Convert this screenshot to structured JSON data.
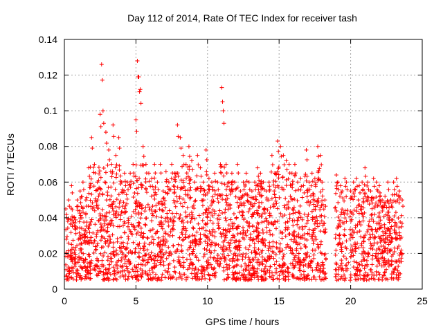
{
  "chart_data": {
    "type": "scatter",
    "title": "Day 112 of 2014, Rate Of TEC Index for receiver tash",
    "xlabel": "GPS time / hours",
    "ylabel": "ROTI / TECUs",
    "xlim": [
      0,
      25
    ],
    "ylim": [
      0,
      0.14
    ],
    "xticks": [
      0,
      5,
      10,
      15,
      20,
      25
    ],
    "xtick_labels": [
      "0",
      "5",
      "10",
      "15",
      "20",
      "25"
    ],
    "yticks": [
      0,
      0.02,
      0.04,
      0.06,
      0.08,
      0.1,
      0.12,
      0.14
    ],
    "ytick_labels": [
      "0",
      "0.02",
      "0.04",
      "0.06",
      "0.08",
      "0.1",
      "0.12",
      "0.14"
    ],
    "grid": true,
    "marker": "plus",
    "color": "#ff0000",
    "series": [
      {
        "name": "ROTI",
        "x": [
          0.1,
          0.3,
          0.5,
          0.7,
          0.9,
          1.1,
          1.3,
          1.5,
          1.7,
          1.9,
          2.1,
          2.3,
          2.5,
          2.6,
          2.7,
          2.9,
          3.1,
          3.3,
          3.4,
          3.6,
          3.8,
          4.0,
          4.2,
          4.4,
          4.6,
          4.8,
          5.0,
          5.1,
          5.2,
          5.3,
          5.5,
          5.7,
          5.9,
          6.1,
          6.3,
          6.5,
          6.7,
          6.9,
          7.1,
          7.3,
          7.5,
          7.7,
          7.9,
          8.1,
          8.3,
          8.5,
          8.7,
          8.9,
          9.1,
          9.3,
          9.5,
          9.7,
          9.9,
          10.1,
          10.3,
          10.5,
          10.7,
          10.9,
          11.0,
          11.1,
          11.3,
          11.5,
          11.7,
          11.9,
          12.1,
          12.3,
          12.5,
          12.7,
          12.9,
          13.1,
          13.3,
          13.5,
          13.7,
          13.9,
          14.1,
          14.3,
          14.5,
          14.7,
          14.9,
          15.1,
          15.3,
          15.5,
          15.7,
          15.9,
          16.1,
          16.3,
          16.5,
          16.7,
          16.9,
          17.1,
          17.3,
          17.5,
          17.7,
          17.9,
          18.0,
          18.2,
          19.0,
          19.1,
          19.3,
          19.4,
          19.6,
          19.7,
          20.0,
          20.2,
          20.4,
          20.6,
          20.8,
          21.0,
          21.2,
          21.4,
          21.6,
          21.8,
          22.0,
          22.2,
          22.4,
          22.6,
          22.8,
          23.0,
          23.2,
          23.4,
          23.6
        ],
        "y": [
          0.045,
          0.05,
          0.058,
          0.04,
          0.05,
          0.055,
          0.06,
          0.05,
          0.068,
          0.085,
          0.07,
          0.06,
          0.098,
          0.126,
          0.1,
          0.088,
          0.078,
          0.07,
          0.092,
          0.075,
          0.085,
          0.06,
          0.065,
          0.06,
          0.065,
          0.07,
          0.095,
          0.128,
          0.119,
          0.112,
          0.08,
          0.07,
          0.065,
          0.062,
          0.07,
          0.06,
          0.07,
          0.055,
          0.066,
          0.06,
          0.07,
          0.065,
          0.092,
          0.085,
          0.075,
          0.07,
          0.08,
          0.072,
          0.06,
          0.075,
          0.068,
          0.06,
          0.078,
          0.062,
          0.06,
          0.065,
          0.06,
          0.07,
          0.113,
          0.1,
          0.07,
          0.06,
          0.065,
          0.06,
          0.07,
          0.055,
          0.06,
          0.065,
          0.06,
          0.055,
          0.06,
          0.068,
          0.065,
          0.06,
          0.055,
          0.06,
          0.075,
          0.065,
          0.083,
          0.08,
          0.075,
          0.072,
          0.07,
          0.065,
          0.07,
          0.06,
          0.062,
          0.058,
          0.078,
          0.06,
          0.065,
          0.062,
          0.08,
          0.075,
          0.06,
          0.05,
          0.064,
          0.06,
          0.058,
          0.055,
          0.062,
          0.06,
          0.055,
          0.06,
          0.062,
          0.058,
          0.06,
          0.068,
          0.06,
          0.055,
          0.062,
          0.06,
          0.058,
          0.05,
          0.052,
          0.06,
          0.05,
          0.06,
          0.062,
          0.055,
          0.05
        ]
      }
    ]
  }
}
